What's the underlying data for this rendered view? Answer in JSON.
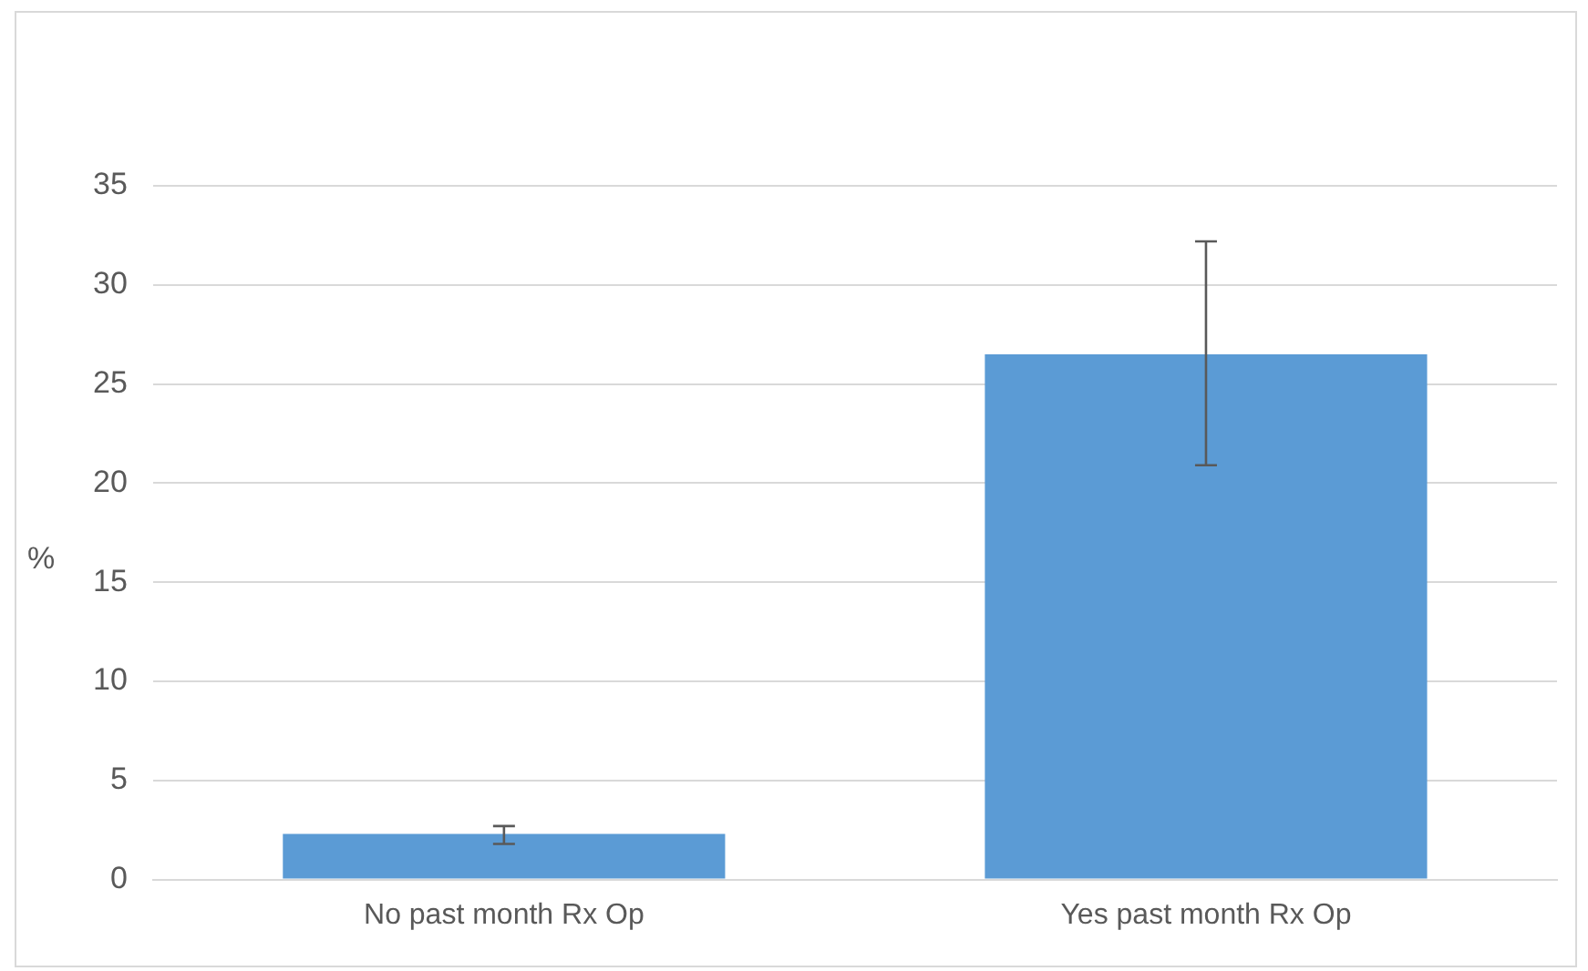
{
  "chart_data": {
    "type": "bar",
    "categories": [
      "No past month Rx Op",
      "Yes past month Rx Op"
    ],
    "values": [
      2.3,
      26.5
    ],
    "color": "#5b9bd5",
    "errors": [
      [
        1.8,
        2.7
      ],
      [
        20.9,
        32.2
      ]
    ],
    "ylabel": "%",
    "ylim": [
      0,
      35
    ],
    "yticks": [
      0,
      5,
      10,
      15,
      20,
      25,
      30,
      35
    ],
    "grid": "y",
    "legend": false
  }
}
